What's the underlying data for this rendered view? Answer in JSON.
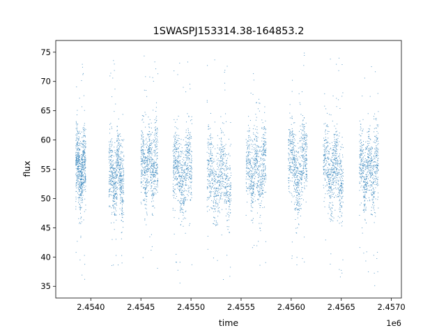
{
  "chart_data": {
    "type": "scatter",
    "title": "1SWASPJ153314.38-164853.2",
    "xlabel": "time",
    "ylabel": "flux",
    "x_offset_label": "1e6",
    "xlim": [
      2.45365,
      2.4571
    ],
    "ylim": [
      33.0,
      77.0
    ],
    "xticks": [
      2.454,
      2.4545,
      2.455,
      2.4555,
      2.456,
      2.4565,
      2.457
    ],
    "xtick_labels": [
      "2.4540",
      "2.4545",
      "2.4550",
      "2.4555",
      "2.4560",
      "2.4565",
      "2.4570"
    ],
    "yticks": [
      35,
      40,
      45,
      50,
      55,
      60,
      65,
      70,
      75
    ],
    "ytick_labels": [
      "35",
      "40",
      "45",
      "50",
      "55",
      "60",
      "65",
      "70",
      "75"
    ],
    "grid": false,
    "marker_color": "#1f77b4",
    "observing_seasons": [
      {
        "x_start": 2.45385,
        "x_end": 2.45395,
        "y_min": 35.5,
        "y_max": 74.8,
        "median": 55.0
      },
      {
        "x_start": 2.45418,
        "x_end": 2.45433,
        "y_min": 38.0,
        "y_max": 74.0,
        "median": 54.0
      },
      {
        "x_start": 2.4545,
        "x_end": 2.45467,
        "y_min": 36.5,
        "y_max": 75.0,
        "median": 55.5
      },
      {
        "x_start": 2.45482,
        "x_end": 2.45501,
        "y_min": 35.0,
        "y_max": 74.5,
        "median": 54.5
      },
      {
        "x_start": 2.45516,
        "x_end": 2.4554,
        "y_min": 36.0,
        "y_max": 74.0,
        "median": 53.5
      },
      {
        "x_start": 2.45555,
        "x_end": 2.45575,
        "y_min": 37.5,
        "y_max": 72.0,
        "median": 55.0
      },
      {
        "x_start": 2.45597,
        "x_end": 2.45616,
        "y_min": 38.5,
        "y_max": 75.0,
        "median": 55.5
      },
      {
        "x_start": 2.45632,
        "x_end": 2.45652,
        "y_min": 36.0,
        "y_max": 75.2,
        "median": 54.5
      },
      {
        "x_start": 2.45668,
        "x_end": 2.45687,
        "y_min": 35.0,
        "y_max": 75.2,
        "median": 55.0
      }
    ]
  }
}
